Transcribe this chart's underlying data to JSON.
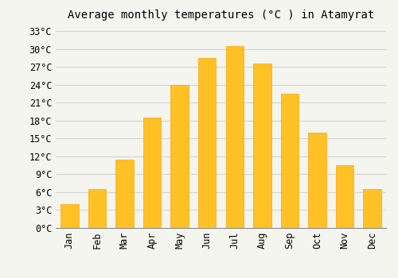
{
  "title": "Average monthly temperatures (°C ) in Atamyrat",
  "months": [
    "Jan",
    "Feb",
    "Mar",
    "Apr",
    "May",
    "Jun",
    "Jul",
    "Aug",
    "Sep",
    "Oct",
    "Nov",
    "Dec"
  ],
  "values": [
    4,
    6.5,
    11.5,
    18.5,
    24,
    28.5,
    30.5,
    27.5,
    22.5,
    16,
    10.5,
    6.5
  ],
  "bar_color": "#FFC125",
  "bar_edge_color": "#FFA500",
  "background_color": "#F5F5F0",
  "yticks": [
    0,
    3,
    6,
    9,
    12,
    15,
    18,
    21,
    24,
    27,
    30,
    33
  ],
  "ytick_labels": [
    "0°C",
    "3°C",
    "6°C",
    "9°C",
    "12°C",
    "15°C",
    "18°C",
    "21°C",
    "24°C",
    "27°C",
    "30°C",
    "33°C"
  ],
  "ylim": [
    0,
    34
  ],
  "grid_color": "#D3D3D3",
  "title_fontsize": 10,
  "tick_fontsize": 8.5,
  "font_family": "monospace"
}
